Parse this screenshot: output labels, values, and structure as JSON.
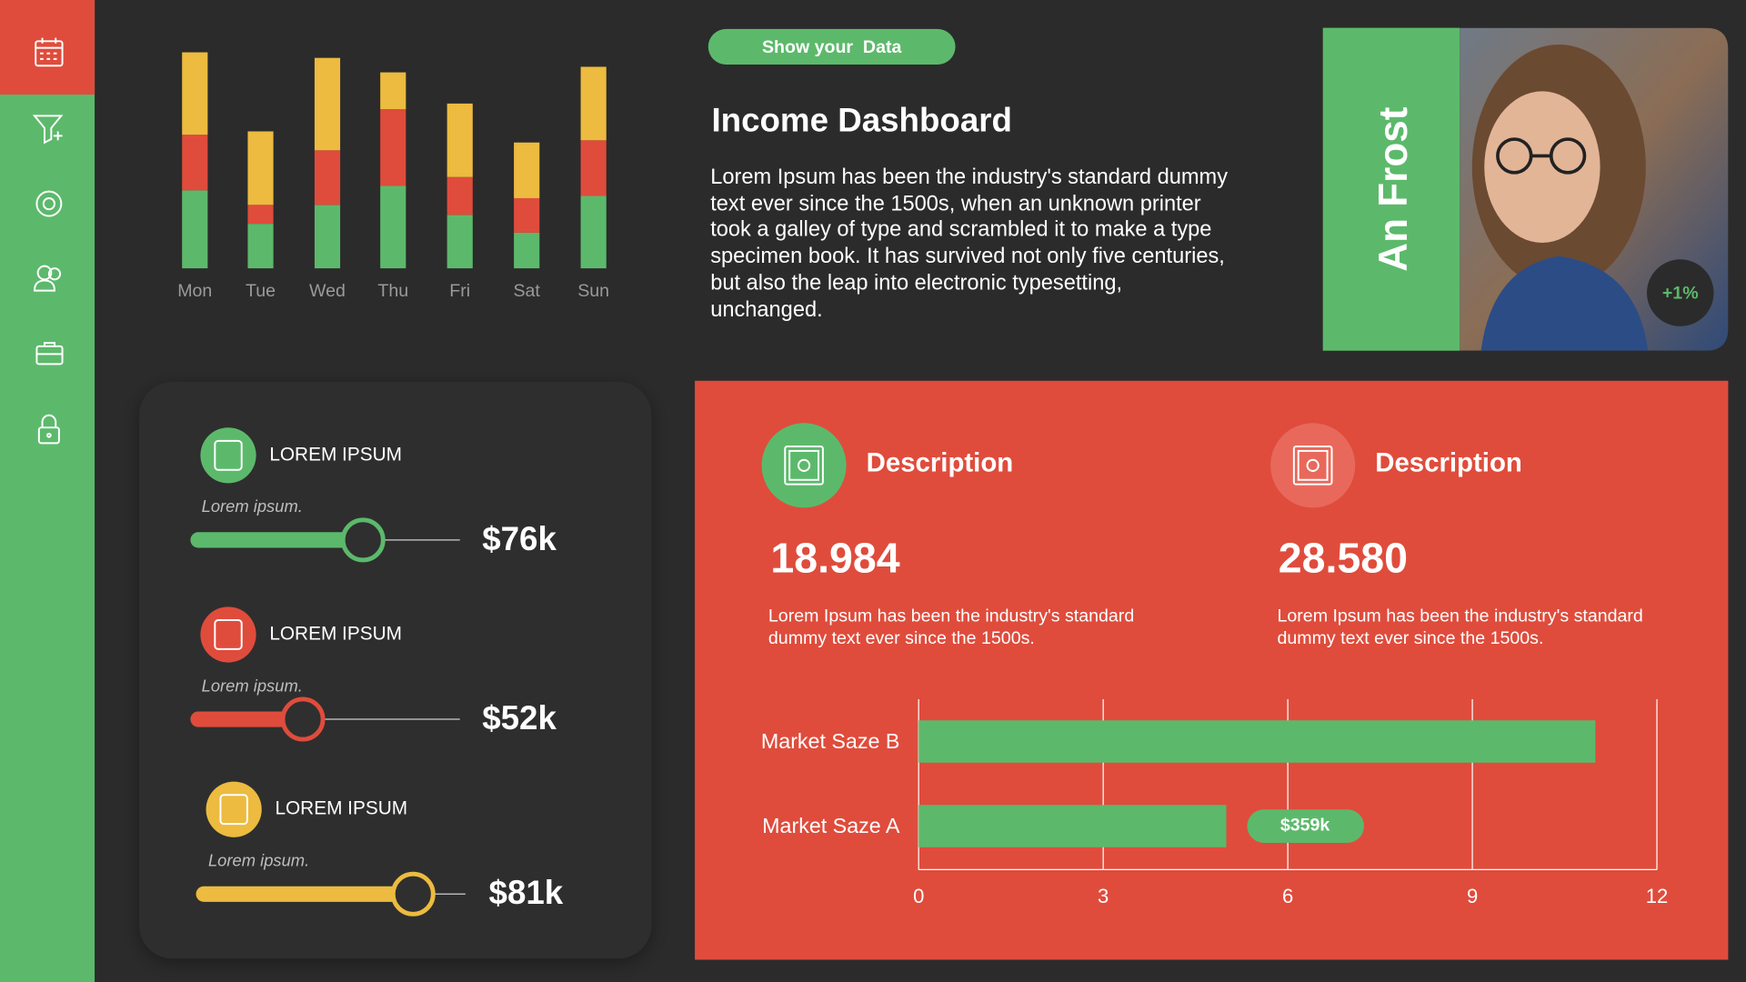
{
  "header": {
    "badge": "Show your  Data",
    "title": "Income Dashboard",
    "body": "Lorem Ipsum has been the industry's standard dummy text ever since the 1500s, when an unknown printer took a galley of type and scrambled it to make a type specimen book. It has survived not only five centuries, but also the leap into electronic typesetting, unchanged."
  },
  "profile": {
    "name": "An Frost",
    "change": "+1%"
  },
  "metrics": [
    {
      "label": "LOREM IPSUM",
      "caption": "Lorem ipsum.",
      "value": "$76k",
      "level": 63,
      "color": "#5cb96b"
    },
    {
      "label": "LOREM IPSUM",
      "caption": "Lorem ipsum.",
      "value": "$52k",
      "level": 40,
      "color": "#df4c3c"
    },
    {
      "label": "LOREM IPSUM",
      "caption": "Lorem ipsum.",
      "value": "$81k",
      "level": 80,
      "color": "#ecbb3f"
    }
  ],
  "cards": [
    {
      "title": "Description",
      "value": "18.984",
      "text": "Lorem Ipsum has been the industry's standard dummy text ever since the 1500s."
    },
    {
      "title": "Description",
      "value": "28.580",
      "text": "Lorem Ipsum has been the industry's standard dummy text ever since the 1500s."
    }
  ],
  "chart_data": [
    {
      "type": "bar",
      "stacked": true,
      "categories": [
        "Mon",
        "Tue",
        "Wed",
        "Thu",
        "Fri",
        "Sat",
        "Sun"
      ],
      "series": [
        {
          "color": "#5cb96b",
          "values": [
            70,
            40,
            57,
            74,
            48,
            32,
            65
          ]
        },
        {
          "color": "#df4c3c",
          "values": [
            50,
            17,
            49,
            69,
            34,
            31,
            50
          ]
        },
        {
          "color": "#ecbb3f",
          "values": [
            74,
            66,
            83,
            33,
            66,
            50,
            66
          ]
        }
      ],
      "ylim": [
        0,
        200
      ]
    },
    {
      "type": "hbar",
      "categories": [
        "Market Saze B",
        "Market Saze A"
      ],
      "values": [
        11,
        5
      ],
      "color": "#5cb96b",
      "xlim": [
        0,
        12
      ],
      "xticks": [
        0,
        3,
        6,
        9,
        12
      ],
      "grid": true,
      "annotation": "$359k"
    }
  ]
}
